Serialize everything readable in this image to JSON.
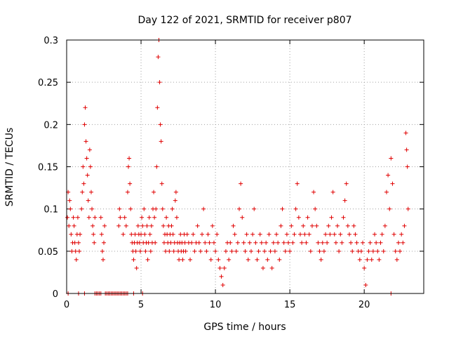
{
  "chart_data": {
    "type": "scatter",
    "title": "Day 122 of 2021, SRMTID for receiver p807",
    "xlabel": "GPS time / hours",
    "ylabel": "SRMTID / TECUs",
    "xlim": [
      0,
      24
    ],
    "ylim": [
      0,
      0.3
    ],
    "x_ticks": [
      0,
      5,
      10,
      15,
      20
    ],
    "x_tick_labels": [
      "0",
      "5",
      "10",
      "15",
      "20"
    ],
    "y_ticks": [
      0,
      0.05,
      0.1,
      0.15,
      0.2,
      0.25,
      0.3
    ],
    "y_tick_labels": [
      "0",
      "0.05",
      "0.1",
      "0.15",
      "0.2",
      "0.25",
      "0.3"
    ],
    "grid": true,
    "marker": "+",
    "color": "#e00000",
    "series": [
      {
        "name": "SRMTID",
        "points": [
          [
            0.05,
            0.09
          ],
          [
            0.1,
            0.12
          ],
          [
            0.15,
            0.08
          ],
          [
            0.2,
            0.11
          ],
          [
            0.25,
            0.1
          ],
          [
            0.3,
            0.07
          ],
          [
            0.35,
            0.05
          ],
          [
            0.4,
            0.06
          ],
          [
            0.45,
            0.09
          ],
          [
            0.5,
            0.08
          ],
          [
            0.55,
            0.06
          ],
          [
            0.6,
            0.05
          ],
          [
            0.65,
            0.04
          ],
          [
            0.7,
            0.07
          ],
          [
            0.75,
            0.09
          ],
          [
            0.8,
            0.06
          ],
          [
            0.85,
            0.05
          ],
          [
            0.9,
            0.07
          ],
          [
            1.0,
            0.1
          ],
          [
            1.05,
            0.12
          ],
          [
            1.1,
            0.15
          ],
          [
            1.15,
            0.13
          ],
          [
            1.2,
            0.2
          ],
          [
            1.25,
            0.22
          ],
          [
            1.3,
            0.18
          ],
          [
            1.35,
            0.16
          ],
          [
            1.4,
            0.14
          ],
          [
            1.45,
            0.11
          ],
          [
            1.5,
            0.09
          ],
          [
            1.55,
            0.17
          ],
          [
            1.6,
            0.15
          ],
          [
            1.65,
            0.12
          ],
          [
            1.7,
            0.1
          ],
          [
            1.75,
            0.08
          ],
          [
            1.8,
            0.07
          ],
          [
            1.85,
            0.06
          ],
          [
            1.9,
            0.09
          ],
          [
            2.3,
            0.09
          ],
          [
            2.35,
            0.07
          ],
          [
            2.4,
            0.05
          ],
          [
            2.45,
            0.04
          ],
          [
            2.5,
            0.06
          ],
          [
            2.55,
            0.08
          ],
          [
            3.5,
            0.08
          ],
          [
            3.55,
            0.1
          ],
          [
            3.6,
            0.09
          ],
          [
            3.8,
            0.07
          ],
          [
            3.9,
            0.09
          ],
          [
            4.0,
            0.08
          ],
          [
            4.1,
            0.12
          ],
          [
            4.15,
            0.15
          ],
          [
            4.2,
            0.16
          ],
          [
            4.25,
            0.13
          ],
          [
            4.3,
            0.1
          ],
          [
            4.35,
            0.07
          ],
          [
            4.4,
            0.06
          ],
          [
            4.45,
            0.05
          ],
          [
            4.5,
            0.04
          ],
          [
            4.55,
            0.06
          ],
          [
            4.6,
            0.07
          ],
          [
            4.65,
            0.05
          ],
          [
            4.7,
            0.03
          ],
          [
            4.75,
            0.06
          ],
          [
            4.8,
            0.08
          ],
          [
            4.85,
            0.07
          ],
          [
            4.9,
            0.06
          ],
          [
            4.95,
            0.05
          ],
          [
            5.0,
            0.07
          ],
          [
            5.05,
            0.09
          ],
          [
            5.1,
            0.08
          ],
          [
            5.15,
            0.06
          ],
          [
            5.2,
            0.1
          ],
          [
            5.25,
            0.07
          ],
          [
            5.3,
            0.05
          ],
          [
            5.35,
            0.06
          ],
          [
            5.4,
            0.08
          ],
          [
            5.45,
            0.04
          ],
          [
            5.5,
            0.06
          ],
          [
            5.55,
            0.09
          ],
          [
            5.6,
            0.07
          ],
          [
            5.65,
            0.05
          ],
          [
            5.7,
            0.08
          ],
          [
            5.75,
            0.06
          ],
          [
            5.8,
            0.1
          ],
          [
            5.85,
            0.12
          ],
          [
            5.9,
            0.09
          ],
          [
            5.95,
            0.06
          ],
          [
            6.0,
            0.1
          ],
          [
            6.05,
            0.15
          ],
          [
            6.1,
            0.22
          ],
          [
            6.15,
            0.28
          ],
          [
            6.2,
            0.3
          ],
          [
            6.25,
            0.25
          ],
          [
            6.3,
            0.2
          ],
          [
            6.35,
            0.18
          ],
          [
            6.4,
            0.13
          ],
          [
            6.45,
            0.1
          ],
          [
            6.5,
            0.08
          ],
          [
            6.55,
            0.06
          ],
          [
            6.6,
            0.07
          ],
          [
            6.65,
            0.05
          ],
          [
            6.7,
            0.09
          ],
          [
            6.75,
            0.07
          ],
          [
            6.8,
            0.06
          ],
          [
            6.85,
            0.08
          ],
          [
            6.9,
            0.05
          ],
          [
            6.95,
            0.07
          ],
          [
            7.0,
            0.06
          ],
          [
            7.05,
            0.08
          ],
          [
            7.1,
            0.1
          ],
          [
            7.15,
            0.07
          ],
          [
            7.2,
            0.05
          ],
          [
            7.25,
            0.06
          ],
          [
            7.3,
            0.11
          ],
          [
            7.35,
            0.12
          ],
          [
            7.4,
            0.09
          ],
          [
            7.45,
            0.06
          ],
          [
            7.5,
            0.05
          ],
          [
            7.55,
            0.04
          ],
          [
            7.6,
            0.06
          ],
          [
            7.65,
            0.07
          ],
          [
            7.7,
            0.05
          ],
          [
            7.75,
            0.06
          ],
          [
            7.8,
            0.04
          ],
          [
            7.85,
            0.05
          ],
          [
            7.9,
            0.07
          ],
          [
            7.95,
            0.06
          ],
          [
            8.0,
            0.05
          ],
          [
            8.1,
            0.07
          ],
          [
            8.2,
            0.06
          ],
          [
            8.3,
            0.04
          ],
          [
            8.4,
            0.06
          ],
          [
            8.5,
            0.07
          ],
          [
            8.6,
            0.05
          ],
          [
            8.7,
            0.06
          ],
          [
            8.8,
            0.08
          ],
          [
            8.9,
            0.06
          ],
          [
            9.0,
            0.05
          ],
          [
            9.1,
            0.07
          ],
          [
            9.2,
            0.1
          ],
          [
            9.3,
            0.06
          ],
          [
            9.4,
            0.05
          ],
          [
            9.5,
            0.07
          ],
          [
            9.6,
            0.06
          ],
          [
            9.7,
            0.04
          ],
          [
            9.8,
            0.08
          ],
          [
            9.9,
            0.06
          ],
          [
            10.0,
            0.05
          ],
          [
            10.1,
            0.07
          ],
          [
            10.2,
            0.04
          ],
          [
            10.3,
            0.03
          ],
          [
            10.4,
            0.02
          ],
          [
            10.5,
            0.01
          ],
          [
            10.6,
            0.03
          ],
          [
            10.7,
            0.05
          ],
          [
            10.8,
            0.06
          ],
          [
            10.9,
            0.04
          ],
          [
            11.0,
            0.06
          ],
          [
            11.1,
            0.05
          ],
          [
            11.2,
            0.08
          ],
          [
            11.3,
            0.07
          ],
          [
            11.4,
            0.05
          ],
          [
            11.5,
            0.06
          ],
          [
            11.6,
            0.1
          ],
          [
            11.7,
            0.13
          ],
          [
            11.8,
            0.09
          ],
          [
            11.9,
            0.06
          ],
          [
            12.0,
            0.05
          ],
          [
            12.1,
            0.07
          ],
          [
            12.2,
            0.04
          ],
          [
            12.3,
            0.06
          ],
          [
            12.4,
            0.05
          ],
          [
            12.5,
            0.07
          ],
          [
            12.6,
            0.1
          ],
          [
            12.7,
            0.06
          ],
          [
            12.8,
            0.04
          ],
          [
            12.9,
            0.05
          ],
          [
            13.0,
            0.07
          ],
          [
            13.1,
            0.06
          ],
          [
            13.2,
            0.03
          ],
          [
            13.3,
            0.05
          ],
          [
            13.4,
            0.06
          ],
          [
            13.5,
            0.04
          ],
          [
            13.6,
            0.07
          ],
          [
            13.7,
            0.05
          ],
          [
            13.8,
            0.03
          ],
          [
            13.9,
            0.06
          ],
          [
            14.0,
            0.05
          ],
          [
            14.1,
            0.07
          ],
          [
            14.2,
            0.06
          ],
          [
            14.3,
            0.04
          ],
          [
            14.4,
            0.08
          ],
          [
            14.5,
            0.1
          ],
          [
            14.6,
            0.06
          ],
          [
            14.7,
            0.05
          ],
          [
            14.8,
            0.07
          ],
          [
            14.9,
            0.06
          ],
          [
            15.0,
            0.05
          ],
          [
            15.1,
            0.08
          ],
          [
            15.2,
            0.06
          ],
          [
            15.3,
            0.07
          ],
          [
            15.4,
            0.1
          ],
          [
            15.5,
            0.13
          ],
          [
            15.6,
            0.09
          ],
          [
            15.7,
            0.07
          ],
          [
            15.8,
            0.06
          ],
          [
            15.9,
            0.08
          ],
          [
            16.0,
            0.07
          ],
          [
            16.1,
            0.06
          ],
          [
            16.2,
            0.09
          ],
          [
            16.3,
            0.07
          ],
          [
            16.4,
            0.05
          ],
          [
            16.5,
            0.08
          ],
          [
            16.6,
            0.12
          ],
          [
            16.7,
            0.1
          ],
          [
            16.8,
            0.08
          ],
          [
            16.9,
            0.06
          ],
          [
            17.0,
            0.05
          ],
          [
            17.1,
            0.04
          ],
          [
            17.2,
            0.06
          ],
          [
            17.3,
            0.05
          ],
          [
            17.4,
            0.07
          ],
          [
            17.5,
            0.06
          ],
          [
            17.6,
            0.08
          ],
          [
            17.7,
            0.07
          ],
          [
            17.8,
            0.09
          ],
          [
            17.9,
            0.12
          ],
          [
            18.0,
            0.07
          ],
          [
            18.1,
            0.06
          ],
          [
            18.2,
            0.08
          ],
          [
            18.3,
            0.05
          ],
          [
            18.4,
            0.07
          ],
          [
            18.5,
            0.06
          ],
          [
            18.6,
            0.09
          ],
          [
            18.7,
            0.11
          ],
          [
            18.8,
            0.13
          ],
          [
            18.9,
            0.08
          ],
          [
            19.0,
            0.07
          ],
          [
            19.1,
            0.06
          ],
          [
            19.2,
            0.05
          ],
          [
            19.3,
            0.08
          ],
          [
            19.4,
            0.07
          ],
          [
            19.5,
            0.06
          ],
          [
            19.6,
            0.05
          ],
          [
            19.7,
            0.04
          ],
          [
            19.8,
            0.05
          ],
          [
            19.9,
            0.06
          ],
          [
            20.0,
            0.03
          ],
          [
            20.1,
            0.01
          ],
          [
            20.2,
            0.04
          ],
          [
            20.3,
            0.05
          ],
          [
            20.4,
            0.06
          ],
          [
            20.5,
            0.04
          ],
          [
            20.6,
            0.05
          ],
          [
            20.7,
            0.07
          ],
          [
            20.8,
            0.06
          ],
          [
            20.9,
            0.05
          ],
          [
            21.0,
            0.04
          ],
          [
            21.1,
            0.06
          ],
          [
            21.2,
            0.07
          ],
          [
            21.3,
            0.05
          ],
          [
            21.4,
            0.08
          ],
          [
            21.5,
            0.12
          ],
          [
            21.6,
            0.14
          ],
          [
            21.7,
            0.1
          ],
          [
            21.8,
            0.16
          ],
          [
            21.9,
            0.13
          ],
          [
            22.0,
            0.07
          ],
          [
            22.1,
            0.05
          ],
          [
            22.2,
            0.04
          ],
          [
            22.3,
            0.06
          ],
          [
            22.4,
            0.05
          ],
          [
            22.5,
            0.07
          ],
          [
            22.6,
            0.06
          ],
          [
            22.7,
            0.08
          ],
          [
            22.8,
            0.19
          ],
          [
            22.85,
            0.17
          ],
          [
            22.9,
            0.15
          ],
          [
            22.95,
            0.1
          ],
          [
            0.1,
            0
          ],
          [
            0.8,
            0
          ],
          [
            1.2,
            0
          ],
          [
            1.9,
            0
          ],
          [
            2.0,
            0
          ],
          [
            2.1,
            0
          ],
          [
            2.2,
            0
          ],
          [
            2.3,
            0
          ],
          [
            2.6,
            0
          ],
          [
            2.7,
            0
          ],
          [
            2.8,
            0
          ],
          [
            2.9,
            0
          ],
          [
            3.0,
            0
          ],
          [
            3.1,
            0
          ],
          [
            3.2,
            0
          ],
          [
            3.3,
            0
          ],
          [
            3.4,
            0
          ],
          [
            3.5,
            0
          ],
          [
            3.6,
            0
          ],
          [
            3.7,
            0
          ],
          [
            3.8,
            0
          ],
          [
            3.9,
            0
          ],
          [
            4.0,
            0
          ],
          [
            4.1,
            0
          ],
          [
            4.5,
            0
          ],
          [
            5.1,
            0
          ],
          [
            21.8,
            0
          ]
        ]
      }
    ]
  }
}
